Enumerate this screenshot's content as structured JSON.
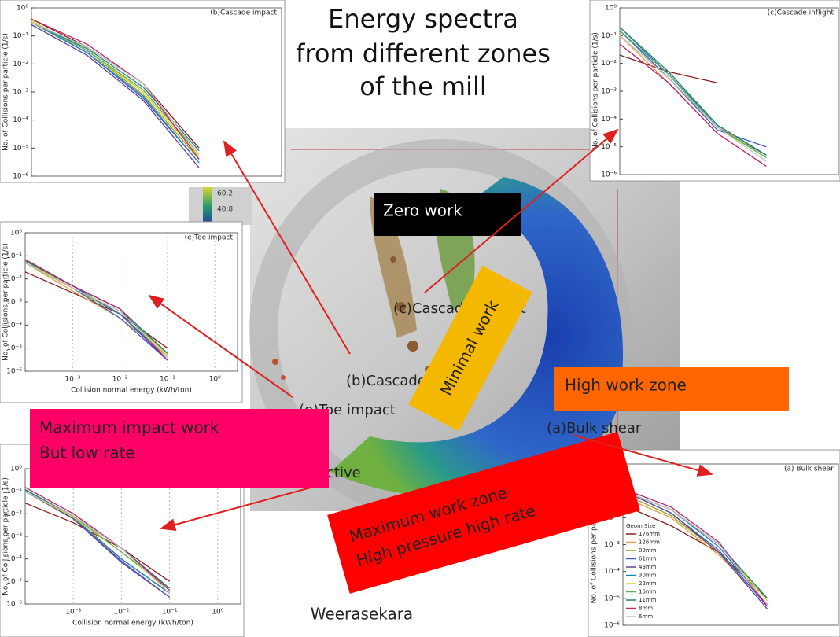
{
  "title": [
    "Energy spectra",
    "from different zones",
    "of the mill"
  ],
  "callouts": {
    "zero_work": [
      "Zero work"
    ],
    "minimal_work": [
      "Minimal work"
    ],
    "high_work_zone": [
      "High work zone"
    ],
    "max_impact": [
      "Maximum impact work",
      "But low rate"
    ],
    "max_work_zone": [
      "Maximum work zone",
      "High pressure high rate"
    ]
  },
  "mill_labels": [
    "(c)Cascade inflight",
    "(b)Cascade impact",
    "(e)Toe impact",
    "(a)Bulk shear",
    "ctive"
  ],
  "colorbar_labels": [
    "60.2",
    "40.8"
  ],
  "credit": "Weerasekara",
  "chart_data": [
    {
      "type": "line",
      "title": "(b)Cascade impact",
      "y_label": "No. of Collisions per particle (1/s)",
      "log_scale": true,
      "x": [
        0.0001,
        0.001,
        0.01,
        0.1
      ],
      "xlim": [
        0.0001,
        3
      ],
      "ylim": [
        1e-06,
        1
      ],
      "yticks": [
        {
          "value": 1,
          "label": "10⁰"
        },
        {
          "value": 0.1,
          "label": "10⁻¹"
        },
        {
          "value": 0.01,
          "label": "10⁻²"
        },
        {
          "value": 0.001,
          "label": "10⁻³"
        },
        {
          "value": 0.0001,
          "label": "10⁻⁴"
        },
        {
          "value": 1e-05,
          "label": "10⁻⁵"
        },
        {
          "value": 1e-06,
          "label": "10⁻⁶"
        }
      ],
      "series": [
        {
          "color": "#8b1a1a",
          "values": [
            0.4,
            0.04,
            0.002,
            1e-05
          ]
        },
        {
          "color": "#e0a040",
          "values": [
            0.3,
            0.03,
            0.001,
            5e-06
          ]
        },
        {
          "color": "#a0a020",
          "values": [
            0.35,
            0.03,
            0.0008,
            4e-06
          ]
        },
        {
          "color": "#4060c0",
          "values": [
            0.3,
            0.025,
            0.0006,
            3e-06
          ]
        },
        {
          "color": "#6040a0",
          "values": [
            0.25,
            0.02,
            0.0005,
            2e-06
          ]
        },
        {
          "color": "#2080c0",
          "values": [
            0.3,
            0.025,
            0.0007,
            3e-06
          ]
        },
        {
          "color": "#d8d820",
          "values": [
            0.35,
            0.03,
            0.001,
            5e-06
          ]
        },
        {
          "color": "#60b060",
          "values": [
            0.3,
            0.03,
            0.0012,
            6e-06
          ]
        },
        {
          "color": "#208080",
          "values": [
            0.3,
            0.035,
            0.0015,
            8e-06
          ]
        },
        {
          "color": "#c0206a",
          "values": [
            0.4,
            0.05,
            0.002,
            4e-06
          ]
        },
        {
          "color": "#c0c0c0",
          "values": [
            0.3,
            0.04,
            0.002,
            6e-06
          ]
        }
      ]
    },
    {
      "type": "line",
      "title": "(c)Cascade inflight",
      "y_label": "No. of Collisions per particle (1/s)",
      "log_scale": true,
      "x": [
        0.0001,
        0.001,
        0.01,
        0.1
      ],
      "xlim": [
        0.0001,
        3
      ],
      "ylim": [
        1e-06,
        1
      ],
      "yticks": [
        {
          "value": 1,
          "label": "10⁰"
        },
        {
          "value": 0.1,
          "label": "10⁻¹"
        },
        {
          "value": 0.01,
          "label": "10⁻²"
        },
        {
          "value": 0.001,
          "label": "10⁻³"
        },
        {
          "value": 0.0001,
          "label": "10⁻⁴"
        },
        {
          "value": 1e-05,
          "label": "10⁻⁵"
        },
        {
          "value": 1e-06,
          "label": "10⁻⁶"
        }
      ],
      "series": [
        {
          "color": "#8b1a1a",
          "values": [
            0.02,
            0.005,
            0.002,
            null
          ]
        },
        {
          "color": "#e0a040",
          "values": [
            0.1,
            0.002,
            3e-05,
            null
          ]
        },
        {
          "color": "#a0a020",
          "values": [
            0.1,
            0.003,
            5e-05,
            5e-06
          ]
        },
        {
          "color": "#4060c0",
          "values": [
            0.15,
            0.003,
            4e-05,
            1e-05
          ]
        },
        {
          "color": "#6040a0",
          "values": [
            0.15,
            0.004,
            5e-05,
            5e-06
          ]
        },
        {
          "color": "#2080c0",
          "values": [
            0.2,
            0.004,
            6e-05,
            5e-06
          ]
        },
        {
          "color": "#d8d820",
          "values": [
            0.2,
            0.005,
            6e-05,
            4e-06
          ]
        },
        {
          "color": "#60b060",
          "values": [
            0.15,
            0.004,
            5e-05,
            4e-06
          ]
        },
        {
          "color": "#208080",
          "values": [
            0.2,
            0.005,
            6e-05,
            5e-06
          ]
        },
        {
          "color": "#c0206a",
          "values": [
            0.05,
            0.002,
            3e-05,
            2e-06
          ]
        },
        {
          "color": "#c0c0c0",
          "values": [
            0.1,
            0.003,
            5e-05,
            3e-06
          ]
        }
      ]
    },
    {
      "type": "line",
      "title": "(e)Toe impact",
      "y_label": "No. of Collisions per particle (1/s)",
      "x_label": "Collision normal energy (kWh/ton)",
      "log_scale": true,
      "x": [
        0.0001,
        0.001,
        0.01,
        0.1
      ],
      "xlim": [
        0.0001,
        3
      ],
      "ylim": [
        1e-06,
        1
      ],
      "yticks": [
        {
          "value": 1,
          "label": "10⁰"
        },
        {
          "value": 0.1,
          "label": "10⁻¹"
        },
        {
          "value": 0.01,
          "label": "10⁻²"
        },
        {
          "value": 0.001,
          "label": "10⁻³"
        },
        {
          "value": 0.0001,
          "label": "10⁻⁴"
        },
        {
          "value": 1e-05,
          "label": "10⁻⁵"
        },
        {
          "value": 1e-06,
          "label": "10⁻⁶"
        }
      ],
      "xticks": [
        {
          "value": 0.001,
          "label": "10⁻³"
        },
        {
          "value": 0.01,
          "label": "10⁻²"
        },
        {
          "value": 0.1,
          "label": "10⁻¹"
        },
        {
          "value": 1,
          "label": "10⁰"
        }
      ],
      "series": [
        {
          "color": "#8b1a1a",
          "values": [
            0.02,
            0.0025,
            0.0003,
            1e-05
          ]
        },
        {
          "color": "#e0a040",
          "values": [
            0.05,
            0.003,
            0.0002,
            5e-06
          ]
        },
        {
          "color": "#a0a020",
          "values": [
            0.05,
            0.004,
            0.0003,
            4e-06
          ]
        },
        {
          "color": "#4060c0",
          "values": [
            0.06,
            0.004,
            0.0002,
            3e-06
          ]
        },
        {
          "color": "#6040a0",
          "values": [
            0.06,
            0.005,
            0.0003,
            3e-06
          ]
        },
        {
          "color": "#2080c0",
          "values": [
            0.07,
            0.005,
            0.0003,
            4e-06
          ]
        },
        {
          "color": "#d8d820",
          "values": [
            0.06,
            0.004,
            0.0004,
            5e-06
          ]
        },
        {
          "color": "#60b060",
          "values": [
            0.05,
            0.004,
            0.0004,
            6e-06
          ]
        },
        {
          "color": "#208080",
          "values": [
            0.06,
            0.005,
            0.0005,
            6e-06
          ]
        },
        {
          "color": "#c0206a",
          "values": [
            0.07,
            0.005,
            0.0005,
            3e-06
          ]
        },
        {
          "color": "#c0c0c0",
          "values": [
            0.05,
            0.004,
            0.0004,
            4e-06
          ]
        }
      ]
    },
    {
      "type": "line",
      "y_label": "No. of Collisions per particle (1/s)",
      "x_label": "Collision normal energy (kWh/ton)",
      "log_scale": true,
      "x": [
        0.0001,
        0.001,
        0.01,
        0.1
      ],
      "xlim": [
        0.0001,
        3
      ],
      "ylim": [
        1e-06,
        1
      ],
      "yticks": [
        {
          "value": 1,
          "label": "10⁰"
        },
        {
          "value": 0.1,
          "label": "10⁻¹"
        },
        {
          "value": 0.01,
          "label": "10⁻²"
        },
        {
          "value": 0.001,
          "label": "10⁻³"
        },
        {
          "value": 0.0001,
          "label": "10⁻⁴"
        },
        {
          "value": 1e-05,
          "label": "10⁻⁵"
        },
        {
          "value": 1e-06,
          "label": "10⁻⁶"
        }
      ],
      "xticks": [
        {
          "value": 0.001,
          "label": "10⁻³"
        },
        {
          "value": 0.01,
          "label": "10⁻²"
        },
        {
          "value": 0.1,
          "label": "10⁻¹"
        },
        {
          "value": 1,
          "label": "10⁰"
        }
      ],
      "series": [
        {
          "color": "#8b1a1a",
          "values": [
            0.03,
            0.004,
            0.0003,
            1e-05
          ]
        },
        {
          "color": "#e0a040",
          "values": [
            0.1,
            0.006,
            0.0001,
            3e-06
          ]
        },
        {
          "color": "#a0a020",
          "values": [
            0.1,
            0.007,
            0.0001,
            3e-06
          ]
        },
        {
          "color": "#4060c0",
          "values": [
            0.1,
            0.006,
            8e-05,
            2e-06
          ]
        },
        {
          "color": "#6040a0",
          "values": [
            0.1,
            0.006,
            7e-05,
            2e-06
          ]
        },
        {
          "color": "#2080c0",
          "values": [
            0.12,
            0.007,
            0.0001,
            3e-06
          ]
        },
        {
          "color": "#d8d820",
          "values": [
            0.1,
            0.007,
            0.0002,
            4e-06
          ]
        },
        {
          "color": "#60b060",
          "values": [
            0.1,
            0.008,
            0.0002,
            5e-06
          ]
        },
        {
          "color": "#208080",
          "values": [
            0.12,
            0.008,
            0.0003,
            5e-06
          ]
        },
        {
          "color": "#c0206a",
          "values": [
            0.15,
            0.01,
            0.0003,
            4e-06
          ]
        },
        {
          "color": "#c0c0c0",
          "values": [
            0.1,
            0.008,
            0.0003,
            3e-06
          ]
        }
      ]
    },
    {
      "type": "line",
      "title": "(a) Bulk shear",
      "y_label": "No. of Collisions per particle (1/s)",
      "log_scale": true,
      "legend_title": "Geom Size",
      "x": [
        0.0001,
        0.001,
        0.01,
        0.1
      ],
      "xlim": [
        0.0001,
        3
      ],
      "ylim": [
        1e-06,
        1
      ],
      "yticks": [
        {
          "value": 1,
          "label": "10⁰"
        },
        {
          "value": 0.1,
          "label": "10⁻¹"
        },
        {
          "value": 0.01,
          "label": "10⁻²"
        },
        {
          "value": 0.001,
          "label": "10⁻³"
        },
        {
          "value": 0.0001,
          "label": "10⁻⁴"
        },
        {
          "value": 1e-05,
          "label": "10⁻⁵"
        },
        {
          "value": 1e-06,
          "label": "10⁻⁶"
        }
      ],
      "series": [
        {
          "name": "176mm",
          "color": "#8b1a1a",
          "values": [
            0.03,
            0.005,
            0.0005,
            1e-05
          ]
        },
        {
          "name": "126mm",
          "color": "#e0a040",
          "values": [
            0.06,
            0.01,
            0.0004,
            6e-06
          ]
        },
        {
          "name": "89mm",
          "color": "#a0a020",
          "values": [
            0.08,
            0.012,
            0.0005,
            6e-06
          ]
        },
        {
          "name": "61mm",
          "color": "#4060c0",
          "values": [
            0.1,
            0.015,
            0.0006,
            5e-06
          ]
        },
        {
          "name": "43mm",
          "color": "#6040a0",
          "values": [
            0.1,
            0.015,
            0.0005,
            4e-06
          ]
        },
        {
          "name": "30mm",
          "color": "#2080c0",
          "values": [
            0.1,
            0.02,
            0.0008,
            6e-06
          ]
        },
        {
          "name": "22mm",
          "color": "#d8d820",
          "values": [
            0.1,
            0.02,
            0.001,
            8e-06
          ]
        },
        {
          "name": "15mm",
          "color": "#60b060",
          "values": [
            0.1,
            0.02,
            0.001,
            1e-05
          ]
        },
        {
          "name": "11mm",
          "color": "#208080",
          "values": [
            0.1,
            0.02,
            0.001,
            1e-05
          ]
        },
        {
          "name": "8mm",
          "color": "#c0206a",
          "values": [
            0.12,
            0.025,
            0.0012,
            5e-06
          ]
        },
        {
          "name": "6mm",
          "color": "#c0c0c0",
          "values": [
            0.1,
            0.02,
            0.001,
            6e-06
          ]
        }
      ]
    }
  ]
}
